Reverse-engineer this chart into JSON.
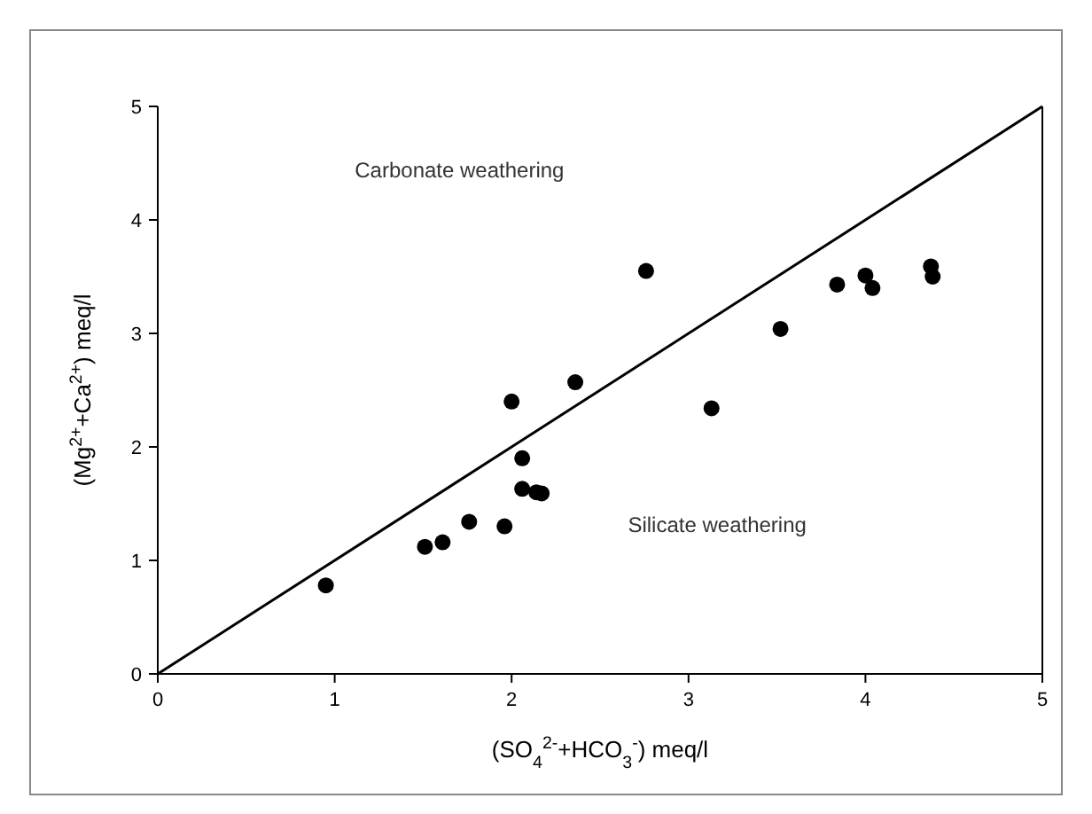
{
  "chart_data": {
    "type": "scatter",
    "xlabel": "(SO$_{4}$$^{2-}$+HCO$_{3}$$^{-}$) meq/l",
    "ylabel": "(Mg$^{2+}$+Ca$^{2+}$) meq/l",
    "xlim": [
      0,
      5
    ],
    "ylim": [
      0,
      5
    ],
    "xticks": [
      0,
      1,
      2,
      3,
      4,
      5
    ],
    "yticks": [
      0,
      1,
      2,
      3,
      4,
      5
    ],
    "grid": false,
    "marker": "circle",
    "series": [
      {
        "color": "#000000",
        "x": [
          0.95,
          1.51,
          1.61,
          1.76,
          1.96,
          2.0,
          2.06,
          2.06,
          2.14,
          2.17,
          2.36,
          2.76,
          3.13,
          3.52,
          3.84,
          4.0,
          4.04,
          4.37,
          4.38
        ],
        "values": [
          0.78,
          1.12,
          1.16,
          1.34,
          1.3,
          2.4,
          1.9,
          1.63,
          1.6,
          1.59,
          2.57,
          3.55,
          2.34,
          3.04,
          3.43,
          3.51,
          3.4,
          3.59,
          3.5
        ]
      },
      {
        "type": "line",
        "color": "#000000",
        "x": [
          0,
          5
        ],
        "values": [
          0,
          5
        ],
        "marker": "none",
        "line_style": "solid"
      }
    ],
    "annotations": [
      "Carbonate weathering",
      "Silicate weathering"
    ]
  }
}
